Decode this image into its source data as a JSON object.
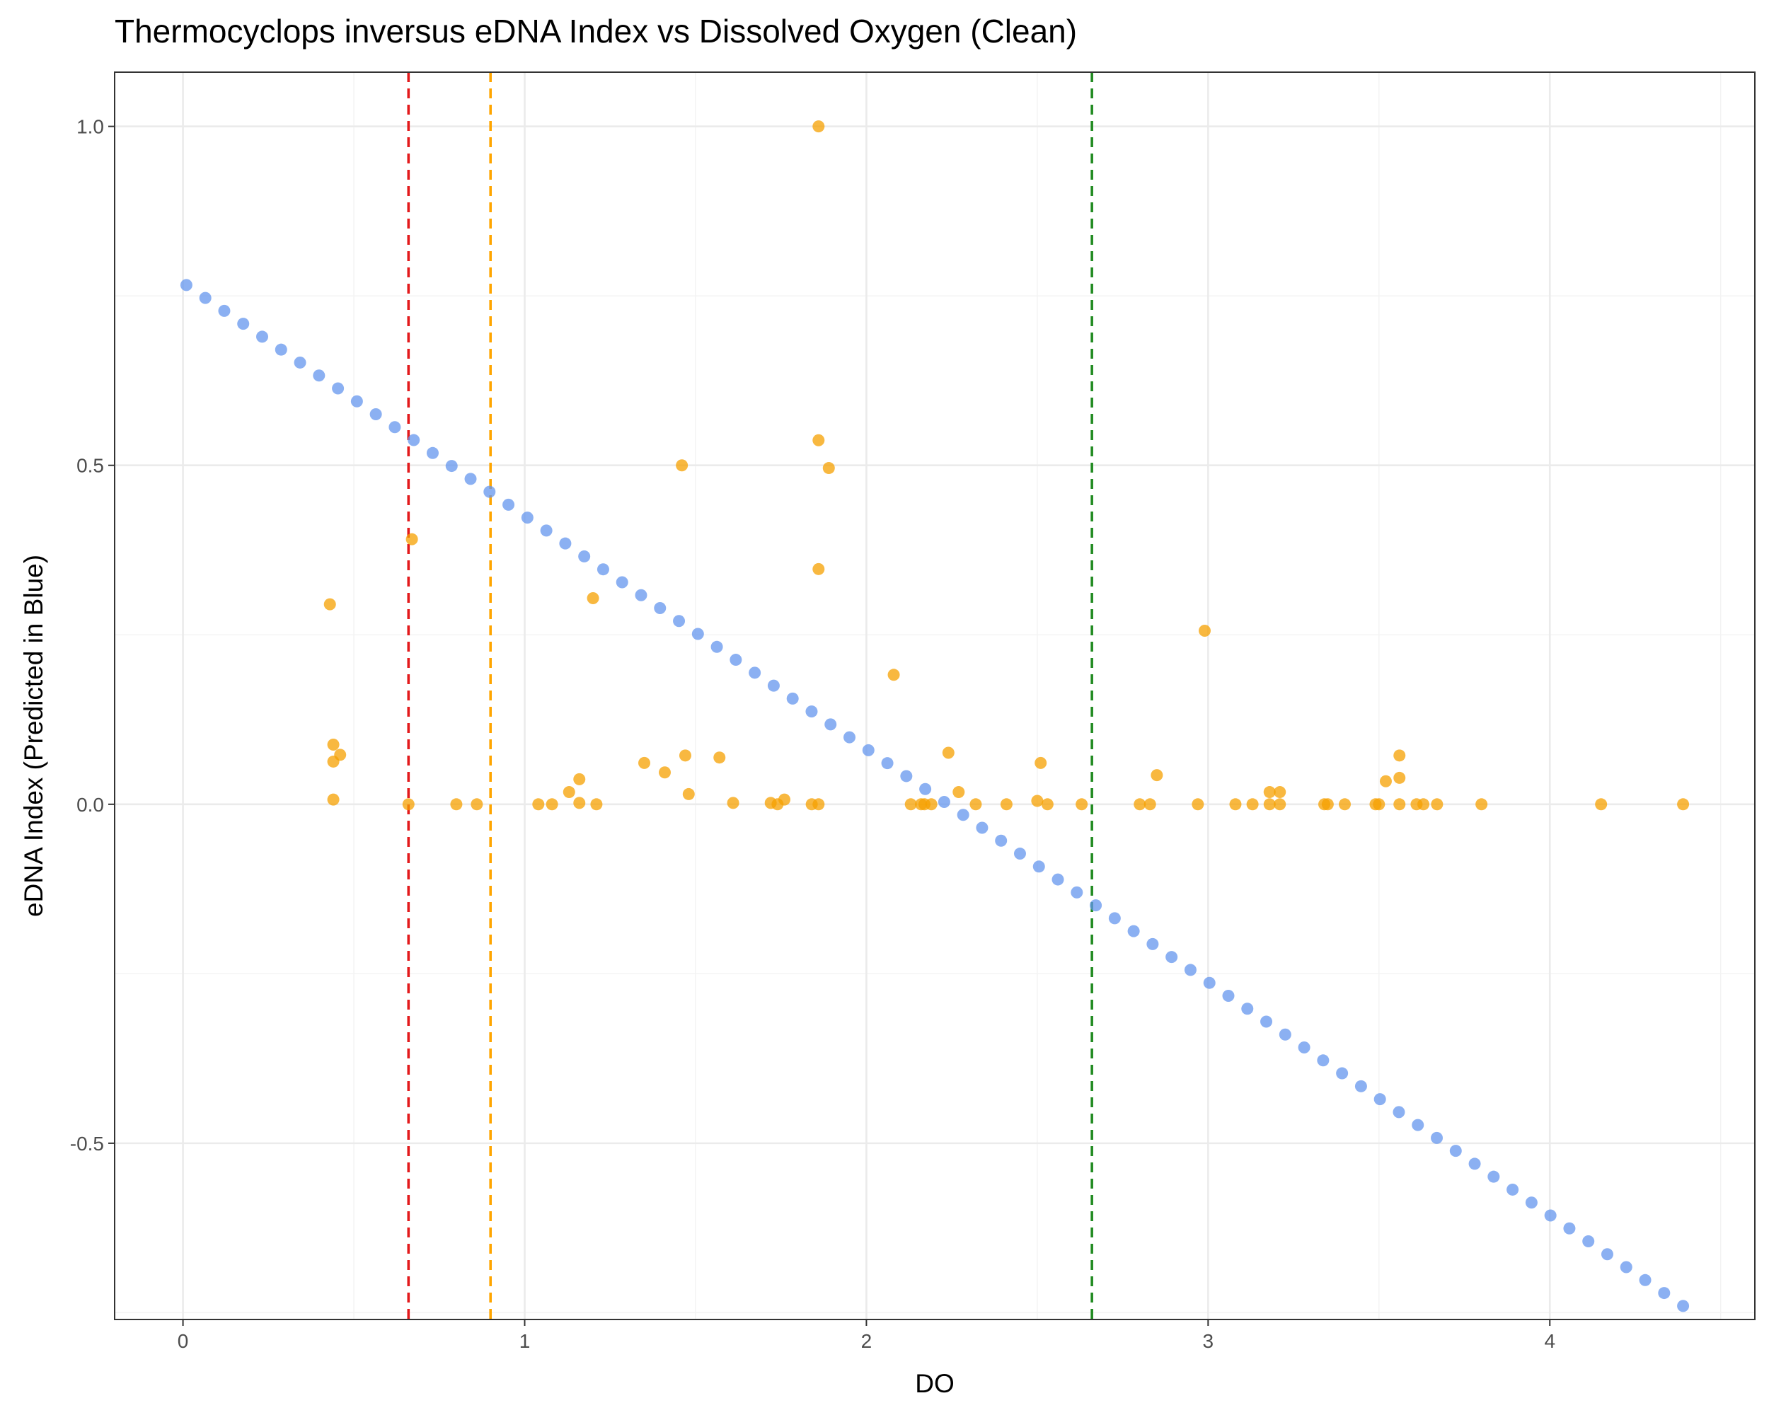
{
  "chart_data": {
    "type": "scatter",
    "title": "Thermocyclops inversus eDNA Index vs Dissolved Oxygen (Clean)",
    "xlabel": "DO",
    "ylabel": "eDNA Index (Predicted in Blue)",
    "xlim": [
      -0.2,
      4.6
    ],
    "ylim": [
      -0.76,
      1.08
    ],
    "x_ticks": [
      0,
      1,
      2,
      3,
      4
    ],
    "x_tick_labels": [
      "0",
      "1",
      "2",
      "3",
      "4"
    ],
    "y_ticks": [
      -0.5,
      0,
      0.5,
      1
    ],
    "y_tick_labels": [
      "-0.5",
      "0.0",
      "0.5",
      "1.0"
    ],
    "grid": true,
    "legend": "none",
    "vlines": [
      {
        "x": 0.66,
        "color": "#e31a1c",
        "style": "dashed"
      },
      {
        "x": 0.9,
        "color": "#ffa500",
        "style": "dashed"
      },
      {
        "x": 2.66,
        "color": "#228b22",
        "style": "dashed"
      }
    ],
    "series": [
      {
        "color": "#6495ed",
        "opacity": 0.75,
        "predicted_line": {
          "x_start": 0.01,
          "x_end": 4.39,
          "y_start": 0.766,
          "y_end": -0.74,
          "n_points": 80
        }
      },
      {
        "color": "#f5a000",
        "opacity": 0.75,
        "points": [
          [
            0.43,
            0.295
          ],
          [
            0.44,
            0.088
          ],
          [
            0.46,
            0.073
          ],
          [
            0.44,
            0.063
          ],
          [
            0.44,
            0.007
          ],
          [
            0.67,
            0.391
          ],
          [
            0.66,
            0.0
          ],
          [
            0.8,
            0.0
          ],
          [
            0.86,
            0.0
          ],
          [
            1.04,
            0.0
          ],
          [
            1.08,
            0.0
          ],
          [
            1.13,
            0.018
          ],
          [
            1.16,
            0.037
          ],
          [
            1.16,
            0.002
          ],
          [
            1.2,
            0.304
          ],
          [
            1.21,
            0.0
          ],
          [
            1.35,
            0.061
          ],
          [
            1.41,
            0.047
          ],
          [
            1.46,
            0.5
          ],
          [
            1.47,
            0.072
          ],
          [
            1.48,
            0.015
          ],
          [
            1.57,
            0.069
          ],
          [
            1.61,
            0.002
          ],
          [
            1.72,
            0.002
          ],
          [
            1.74,
            0.0
          ],
          [
            1.76,
            0.007
          ],
          [
            1.84,
            0.0
          ],
          [
            1.86,
            0.0
          ],
          [
            1.86,
            1.0
          ],
          [
            1.86,
            0.537
          ],
          [
            1.89,
            0.496
          ],
          [
            1.86,
            0.347
          ],
          [
            2.08,
            0.191
          ],
          [
            2.13,
            0.0
          ],
          [
            2.16,
            0.0
          ],
          [
            2.17,
            0.0
          ],
          [
            2.19,
            0.0
          ],
          [
            2.24,
            0.076
          ],
          [
            2.27,
            0.018
          ],
          [
            2.32,
            0.0
          ],
          [
            2.41,
            0.0
          ],
          [
            2.5,
            0.005
          ],
          [
            2.51,
            0.061
          ],
          [
            2.53,
            0.0
          ],
          [
            2.63,
            0.0
          ],
          [
            2.8,
            0.0
          ],
          [
            2.83,
            0.0
          ],
          [
            2.85,
            0.043
          ],
          [
            2.97,
            0.0
          ],
          [
            2.99,
            0.256
          ],
          [
            3.08,
            0.0
          ],
          [
            3.13,
            0.0
          ],
          [
            3.18,
            0.018
          ],
          [
            3.18,
            0.0
          ],
          [
            3.21,
            0.0
          ],
          [
            3.21,
            0.018
          ],
          [
            3.34,
            0.0
          ],
          [
            3.35,
            0.0
          ],
          [
            3.4,
            0.0
          ],
          [
            3.49,
            0.0
          ],
          [
            3.5,
            0.0
          ],
          [
            3.52,
            0.034
          ],
          [
            3.56,
            0.072
          ],
          [
            3.56,
            0.039
          ],
          [
            3.56,
            0.0
          ],
          [
            3.61,
            0.0
          ],
          [
            3.63,
            0.0
          ],
          [
            3.67,
            0.0
          ],
          [
            3.8,
            0.0
          ],
          [
            4.15,
            0.0
          ],
          [
            4.39,
            0.0
          ]
        ]
      }
    ]
  }
}
